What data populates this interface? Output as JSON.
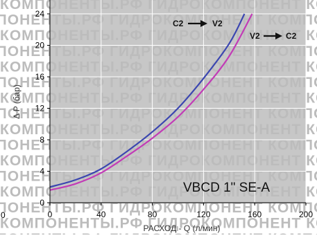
{
  "chart_data": {
    "type": "line",
    "title": "VBCD 1\" SE-A",
    "xlabel": "РАСХОД - Q (л/мин)",
    "ylabel": "Δ P (бар)",
    "xlim": [
      0,
      200
    ],
    "ylim": [
      0,
      24
    ],
    "xticks": [
      0,
      40,
      80,
      120,
      160,
      200
    ],
    "yticks": [
      0,
      4,
      8,
      12,
      16,
      20,
      24
    ],
    "stray_tick_label": "0",
    "grid": true,
    "colors": {
      "background": "#c7c7c7",
      "grid": "#ffffff",
      "axis": "#000000",
      "watermark": "#bcbcbc"
    },
    "watermark": "КОМПОНЕНТЫ.РФ ГИДРОКОМПОНЕНТ",
    "series": [
      {
        "name": "C2 → V2",
        "from": "C2",
        "to": "V2",
        "color": "#3b46b0",
        "x": [
          0,
          20,
          40,
          60,
          80,
          100,
          120,
          140,
          152
        ],
        "y": [
          2.0,
          2.9,
          4.3,
          6.5,
          9.0,
          12.0,
          15.8,
          20.2,
          24.0
        ]
      },
      {
        "name": "V2 → C2",
        "from": "V2",
        "to": "C2",
        "color": "#c23bb6",
        "x": [
          0,
          20,
          40,
          60,
          80,
          100,
          120,
          140,
          158
        ],
        "y": [
          1.6,
          2.4,
          3.8,
          5.9,
          8.2,
          10.9,
          14.4,
          18.6,
          24.0
        ]
      }
    ]
  }
}
